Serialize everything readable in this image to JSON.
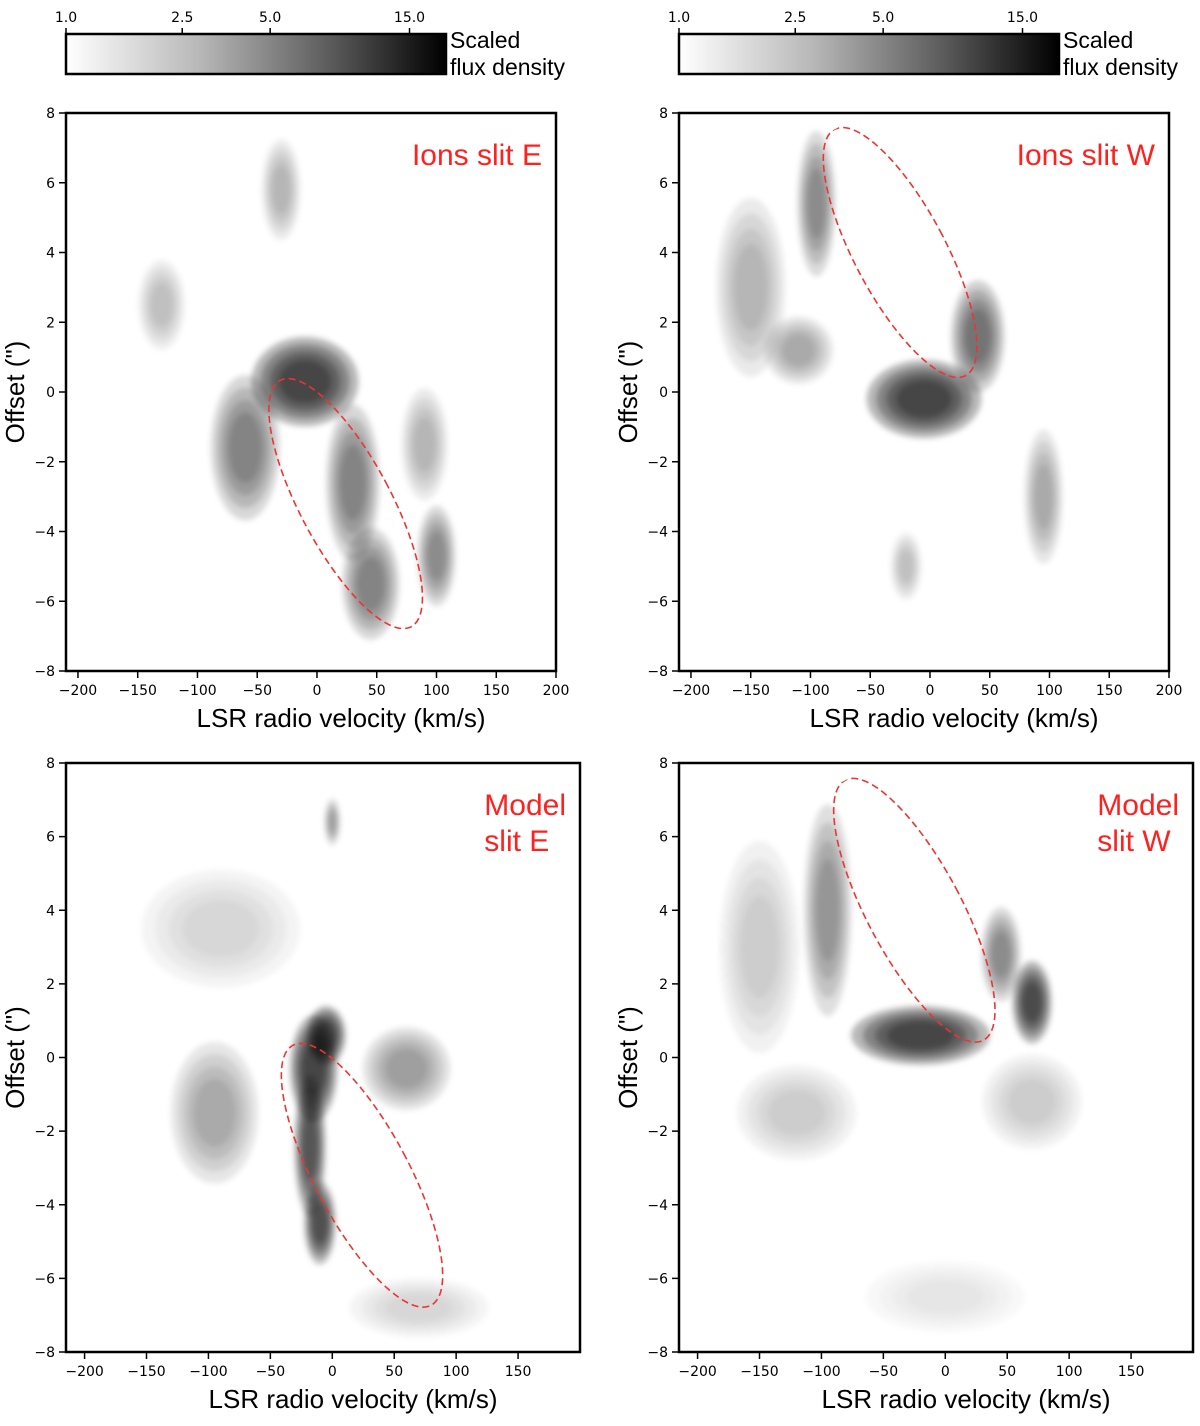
{
  "colorbar": {
    "ticks": [
      "1.0",
      "2.5",
      "5.0",
      "15.0"
    ],
    "tick_values": [
      1.0,
      2.5,
      5.0,
      15.0
    ],
    "label_line1": "Scaled",
    "label_line2": "flux density"
  },
  "chart_data": [
    {
      "type": "heatmap",
      "title_lines": [
        "Ions slit E"
      ],
      "xlabel": "LSR radio velocity (km/s)",
      "ylabel": "Offset (\")",
      "xlim": [
        -210,
        200
      ],
      "ylim": [
        -8,
        8
      ],
      "xticks": [
        -200,
        -150,
        -100,
        -50,
        0,
        50,
        100,
        150,
        200
      ],
      "yticks": [
        -8,
        -6,
        -4,
        -2,
        0,
        2,
        4,
        6,
        8
      ],
      "ellipse": {
        "center_v": 24,
        "center_offset": -3.2,
        "semi_major_offset": 4.0,
        "semi_minor_v": 38,
        "tilt_deg": 28
      },
      "emission": [
        {
          "v": -10,
          "o": 0.3,
          "sv": 28,
          "so": 0.8,
          "a": 1.0
        },
        {
          "v": -60,
          "o": -1.6,
          "sv": 18,
          "so": 1.3,
          "a": 0.55
        },
        {
          "v": 30,
          "o": -2.6,
          "sv": 14,
          "so": 1.4,
          "a": 0.55
        },
        {
          "v": 45,
          "o": -5.5,
          "sv": 15,
          "so": 1.0,
          "a": 0.55
        },
        {
          "v": 100,
          "o": -4.7,
          "sv": 10,
          "so": 0.9,
          "a": 0.5
        },
        {
          "v": -30,
          "o": 5.8,
          "sv": 10,
          "so": 0.9,
          "a": 0.3
        },
        {
          "v": -130,
          "o": 2.5,
          "sv": 12,
          "so": 0.8,
          "a": 0.25
        },
        {
          "v": 90,
          "o": -1.5,
          "sv": 12,
          "so": 1.0,
          "a": 0.3
        }
      ]
    },
    {
      "type": "heatmap",
      "title_lines": [
        "Ions slit W"
      ],
      "xlabel": "LSR radio velocity (km/s)",
      "ylabel": "Offset (\")",
      "xlim": [
        -210,
        200
      ],
      "ylim": [
        -8,
        8
      ],
      "xticks": [
        -200,
        -150,
        -100,
        -50,
        0,
        50,
        100,
        150,
        200
      ],
      "yticks": [
        -8,
        -6,
        -4,
        -2,
        0,
        2,
        4,
        6,
        8
      ],
      "ellipse": {
        "center_v": -25,
        "center_offset": 4.0,
        "semi_major_offset": 4.0,
        "semi_minor_v": 38,
        "tilt_deg": 28
      },
      "emission": [
        {
          "v": -5,
          "o": -0.2,
          "sv": 30,
          "so": 0.7,
          "a": 1.0
        },
        {
          "v": 40,
          "o": 1.6,
          "sv": 14,
          "so": 1.0,
          "a": 0.65
        },
        {
          "v": -95,
          "o": 5.4,
          "sv": 10,
          "so": 1.3,
          "a": 0.5
        },
        {
          "v": -150,
          "o": 3.0,
          "sv": 18,
          "so": 1.6,
          "a": 0.3
        },
        {
          "v": -110,
          "o": 1.2,
          "sv": 18,
          "so": 0.6,
          "a": 0.35
        },
        {
          "v": 95,
          "o": -3.0,
          "sv": 10,
          "so": 1.2,
          "a": 0.35
        },
        {
          "v": -20,
          "o": -5.0,
          "sv": 8,
          "so": 0.6,
          "a": 0.25
        }
      ]
    },
    {
      "type": "heatmap",
      "title_lines": [
        "Model",
        "slit E"
      ],
      "xlabel": "LSR radio velocity (km/s)",
      "ylabel": "Offset (\")",
      "xlim": [
        -215,
        200
      ],
      "ylim": [
        -8,
        8
      ],
      "xticks": [
        -200,
        -150,
        -100,
        -50,
        0,
        50,
        100,
        150
      ],
      "yticks": [
        -8,
        -6,
        -4,
        -2,
        0,
        2,
        4,
        6,
        8
      ],
      "ellipse": {
        "center_v": 24,
        "center_offset": -3.2,
        "semi_major_offset": 4.0,
        "semi_minor_v": 38,
        "tilt_deg": 28
      },
      "emission": [
        {
          "v": -15,
          "o": -0.3,
          "sv": 12,
          "so": 0.9,
          "a": 1.0
        },
        {
          "v": -5,
          "o": 0.6,
          "sv": 10,
          "so": 0.5,
          "a": 1.0
        },
        {
          "v": -18,
          "o": -2.4,
          "sv": 8,
          "so": 1.2,
          "a": 0.85
        },
        {
          "v": -10,
          "o": -4.5,
          "sv": 8,
          "so": 0.7,
          "a": 0.9
        },
        {
          "v": 60,
          "o": -0.3,
          "sv": 22,
          "so": 0.7,
          "a": 0.4
        },
        {
          "v": -95,
          "o": -1.5,
          "sv": 22,
          "so": 1.2,
          "a": 0.35
        },
        {
          "v": -90,
          "o": 3.5,
          "sv": 40,
          "so": 1.0,
          "a": 0.15
        },
        {
          "v": 0,
          "o": 6.4,
          "sv": 4,
          "so": 0.4,
          "a": 0.4
        },
        {
          "v": 70,
          "o": -6.8,
          "sv": 35,
          "so": 0.5,
          "a": 0.15
        }
      ]
    },
    {
      "type": "heatmap",
      "title_lines": [
        "Model",
        "slit W"
      ],
      "xlabel": "LSR radio velocity (km/s)",
      "ylabel": "Offset (\")",
      "xlim": [
        -215,
        200
      ],
      "ylim": [
        -8,
        8
      ],
      "xticks": [
        -200,
        -150,
        -100,
        -50,
        0,
        50,
        100,
        150
      ],
      "yticks": [
        -8,
        -6,
        -4,
        -2,
        0,
        2,
        4,
        6,
        8
      ],
      "ellipse": {
        "center_v": -25,
        "center_offset": 4.0,
        "semi_major_offset": 4.0,
        "semi_minor_v": 38,
        "tilt_deg": 28
      },
      "emission": [
        {
          "v": -20,
          "o": 0.6,
          "sv": 35,
          "so": 0.5,
          "a": 1.0
        },
        {
          "v": 70,
          "o": 1.5,
          "sv": 10,
          "so": 0.7,
          "a": 0.95
        },
        {
          "v": 45,
          "o": 2.8,
          "sv": 10,
          "so": 0.8,
          "a": 0.5
        },
        {
          "v": -95,
          "o": 4.0,
          "sv": 12,
          "so": 1.8,
          "a": 0.45
        },
        {
          "v": -150,
          "o": 3.0,
          "sv": 20,
          "so": 1.8,
          "a": 0.2
        },
        {
          "v": -120,
          "o": -1.5,
          "sv": 30,
          "so": 0.8,
          "a": 0.2
        },
        {
          "v": 70,
          "o": -1.2,
          "sv": 25,
          "so": 0.8,
          "a": 0.2
        },
        {
          "v": 0,
          "o": -6.5,
          "sv": 40,
          "so": 0.6,
          "a": 0.1
        }
      ]
    }
  ]
}
